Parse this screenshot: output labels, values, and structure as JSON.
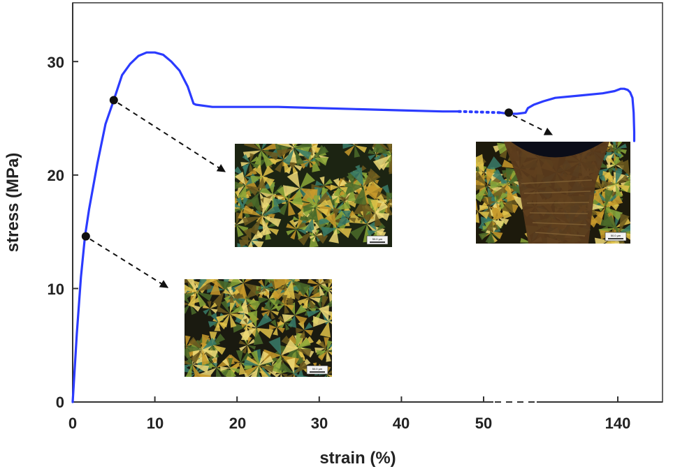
{
  "chart_data": {
    "type": "line",
    "title": "",
    "xlabel": "strain (%)",
    "ylabel": "stress (MPa)",
    "x_tick_labels": [
      "0",
      "10",
      "20",
      "30",
      "40",
      "50",
      "140"
    ],
    "y_tick_labels": [
      "0",
      "10",
      "20",
      "30"
    ],
    "ylim": [
      0,
      35
    ],
    "axis_break": "between 50 and 140",
    "grid": false,
    "legend": "none",
    "series": [
      {
        "color": "#2b3bff",
        "points": [
          [
            0,
            0
          ],
          [
            0.5,
            6
          ],
          [
            1,
            11
          ],
          [
            1.5,
            14.6
          ],
          [
            2,
            17
          ],
          [
            3,
            21
          ],
          [
            4,
            24.5
          ],
          [
            5,
            26.6
          ],
          [
            6,
            28.8
          ],
          [
            7,
            29.8
          ],
          [
            8,
            30.5
          ],
          [
            9,
            30.8
          ],
          [
            10,
            30.8
          ],
          [
            11,
            30.6
          ],
          [
            12,
            30
          ],
          [
            13,
            29.2
          ],
          [
            14,
            27.8
          ],
          [
            14.7,
            26.3
          ],
          [
            15,
            26.2
          ],
          [
            17,
            26
          ],
          [
            20,
            26
          ],
          [
            25,
            26
          ],
          [
            30,
            25.9
          ],
          [
            35,
            25.8
          ],
          [
            40,
            25.7
          ],
          [
            45,
            25.6
          ],
          [
            47,
            25.6
          ]
        ]
      },
      {
        "color": "#2b3bff",
        "line": "dotted",
        "points": [
          [
            47,
            25.6
          ],
          [
            52,
            25.5
          ]
        ]
      },
      {
        "color": "#2b3bff",
        "points": [
          [
            52,
            25.5
          ],
          [
            53,
            25.4
          ],
          [
            54,
            25.4
          ],
          [
            55,
            25.5
          ],
          [
            57,
            25.9
          ],
          [
            62,
            26.2
          ],
          [
            70,
            26.5
          ],
          [
            80,
            26.8
          ],
          [
            100,
            27
          ],
          [
            120,
            27.2
          ],
          [
            130,
            27.4
          ],
          [
            135,
            27.6
          ],
          [
            138,
            27.6
          ],
          [
            141,
            27.5
          ],
          [
            143,
            27.3
          ],
          [
            145,
            26.8
          ],
          [
            146,
            25.5
          ],
          [
            146.5,
            23.8
          ],
          [
            146.5,
            23
          ]
        ]
      }
    ],
    "markers": [
      {
        "x": 1.6,
        "y": 14.6
      },
      {
        "x": 5,
        "y": 26.6
      },
      {
        "x": 53,
        "y": 25.5
      }
    ]
  },
  "micrographs": [
    {
      "name": "micrograph-low-strain",
      "scalebar": "50.0 µm"
    },
    {
      "name": "micrograph-yield",
      "scalebar": "50.0 µm"
    },
    {
      "name": "micrograph-necking",
      "scalebar": "50.0 µm"
    }
  ],
  "colors": {
    "curve": "#2b3bff",
    "frame": "#333333",
    "marker": "#111111"
  }
}
